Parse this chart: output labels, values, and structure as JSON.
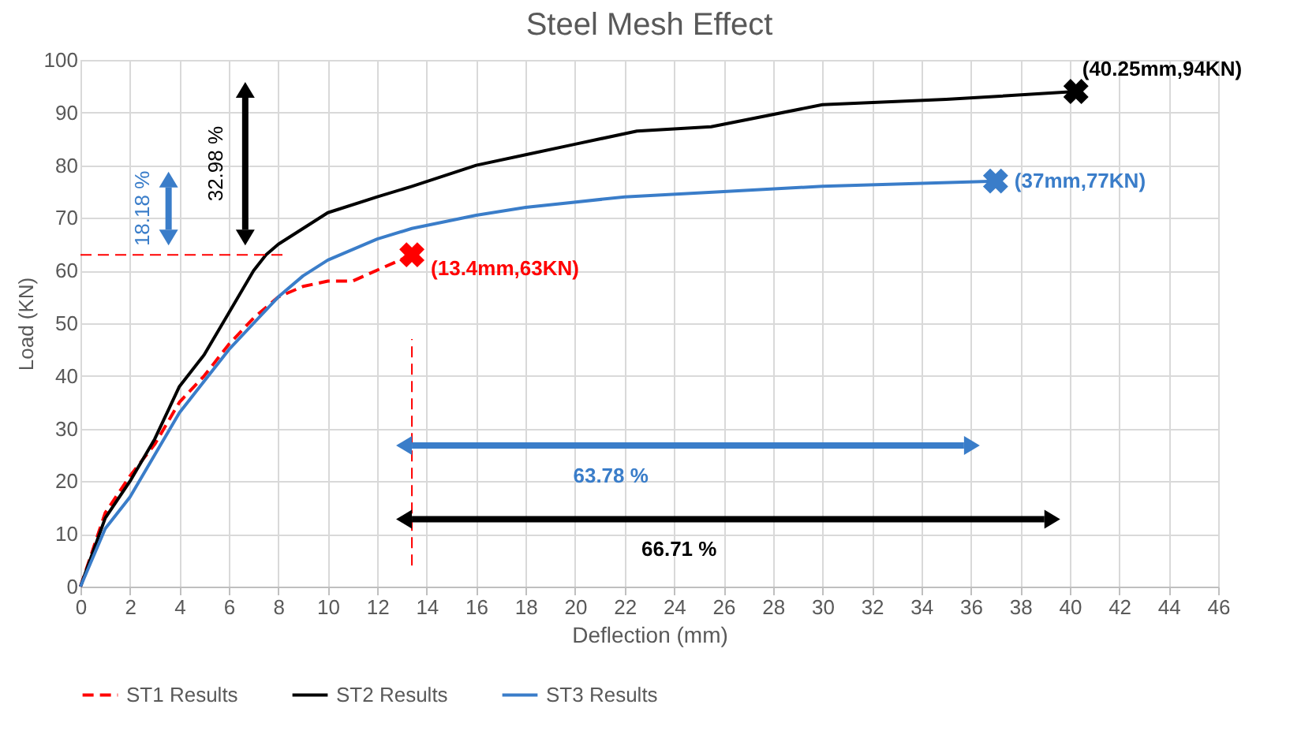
{
  "chart_data": {
    "type": "line",
    "title": "Steel Mesh Effect",
    "xlabel": "Deflection (mm)",
    "ylabel": "Load (KN)",
    "xlim": [
      0,
      46
    ],
    "xticks": [
      0,
      2,
      4,
      6,
      8,
      10,
      12,
      14,
      16,
      18,
      20,
      22,
      24,
      26,
      28,
      30,
      32,
      34,
      36,
      38,
      40,
      42,
      44,
      46
    ],
    "ylim": [
      0,
      100
    ],
    "yticks": [
      0,
      10,
      20,
      30,
      40,
      50,
      60,
      70,
      80,
      90,
      100
    ],
    "grid": true,
    "legend": "bottom",
    "series": [
      {
        "name": "ST1 Results",
        "color": "#ff0000",
        "line_style": "dashed",
        "x": [
          0,
          1,
          2,
          3,
          4,
          5,
          6,
          7,
          8,
          9,
          10,
          11,
          13.4
        ],
        "values": [
          0,
          14,
          21,
          27,
          35,
          40,
          46,
          51,
          55,
          57,
          58,
          58,
          63
        ]
      },
      {
        "name": "ST2 Results",
        "color": "#000000",
        "x": [
          0,
          1,
          2,
          3,
          4,
          5,
          6,
          7,
          7.5,
          8,
          10,
          12,
          13.4,
          16,
          18,
          20,
          22.5,
          25.5,
          30,
          35,
          40.25
        ],
        "values": [
          0,
          13,
          20,
          28,
          38,
          44,
          52,
          60,
          63,
          65,
          71,
          74,
          76,
          80,
          82,
          84,
          86.5,
          87.3,
          91.5,
          92.5,
          94
        ]
      },
      {
        "name": "ST3 Results",
        "color": "#3a7dc9",
        "x": [
          0,
          1,
          2,
          3,
          4,
          5,
          6,
          7,
          8,
          9,
          10,
          12,
          13.4,
          16,
          18,
          22,
          26,
          30,
          37
        ],
        "values": [
          0,
          11,
          17,
          25,
          33,
          39,
          45,
          50,
          55,
          59,
          62,
          66,
          68,
          70.5,
          72,
          74,
          75,
          76,
          77
        ]
      },
      {
        "type": "line",
        "color": "#ff0000",
        "line_style": "dashed",
        "x": [
          0,
          8.2
        ],
        "values": [
          63,
          63
        ]
      },
      {
        "type": "line",
        "color": "#ff0000",
        "line_style": "dashed",
        "x": [
          13.4,
          13.4
        ],
        "values": [
          4,
          47
        ]
      },
      {
        "type": "scatter",
        "color": "#ff0000",
        "marker": "cross",
        "x": [
          13.4
        ],
        "values": [
          63
        ]
      },
      {
        "type": "scatter",
        "color": "#000000",
        "marker": "cross",
        "x": [
          40.25
        ],
        "values": [
          94
        ]
      },
      {
        "type": "scatter",
        "color": "#3a7dc9",
        "marker": "cross",
        "x": [
          37
        ],
        "values": [
          77
        ]
      }
    ],
    "annotations": [
      {
        "text": "(13.4mm,63KN)",
        "x": 13.4,
        "y": 63
      },
      {
        "text": "(40.25mm,94KN)",
        "x": 40.25,
        "y": 94
      },
      {
        "text": "(37mm,77KN)",
        "x": 37,
        "y": 77
      },
      "18.18 %",
      "32.98 %",
      "63.78 %",
      "66.71 %"
    ]
  }
}
